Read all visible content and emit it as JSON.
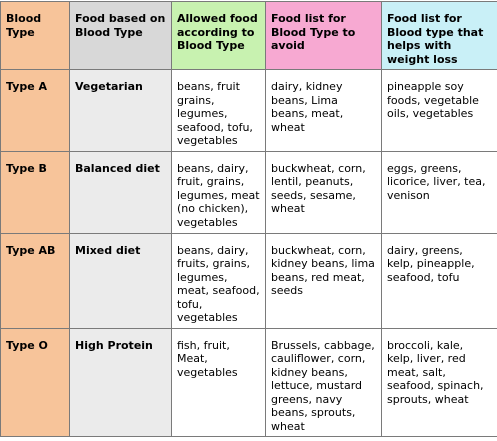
{
  "headers": {
    "blood_type": "Blood Type",
    "food_based": "Food based on Blood Type",
    "allowed": "Allowed food according to Blood Type",
    "avoid": "Food list for Blood Type to avoid",
    "weight_loss": "Food list for Blood type that helps with weight loss"
  },
  "rows": [
    {
      "type": "Type A",
      "diet": "Vegetarian",
      "allowed": "beans, fruit grains, legumes, seafood, tofu, vegetables",
      "avoid": "dairy, kidney beans, Lima beans, meat, wheat",
      "weight_loss": "pineapple soy foods, vegetable oils, vegetables"
    },
    {
      "type": "Type B",
      "diet": "Balanced diet",
      "allowed": "beans, dairy, fruit, grains, legumes, meat (no chicken), vegetables",
      "avoid": "buckwheat, corn, lentil, peanuts, seeds, sesame, wheat",
      "weight_loss": "eggs, greens, licorice, liver, tea, venison"
    },
    {
      "type": "Type AB",
      "diet": "Mixed diet",
      "allowed": "beans, dairy, fruits, grains, legumes, meat, seafood, tofu, vegetables",
      "avoid": "buckwheat, corn, kidney beans, lima beans, red meat, seeds",
      "weight_loss": "dairy, greens, kelp, pineapple, seafood, tofu"
    },
    {
      "type": "Type O",
      "diet": "High Protein",
      "allowed": "fish, fruit, Meat, vegetables",
      "avoid": "Brussels, cabbage, cauliflower, corn, kidney beans, lettuce, mustard greens, navy beans, sprouts, wheat",
      "weight_loss": "broccoli, kale, kelp, liver, red meat, salt, seafood, spinach, sprouts, wheat"
    }
  ],
  "colors": {
    "blood_type_column": "#f7c49a",
    "food_based_column": "#d8d8d8",
    "allowed_header": "#c8f2b0",
    "avoid_header": "#f7a9d2",
    "weight_loss_header": "#c9f0f7",
    "border": "#7a7a7a"
  }
}
